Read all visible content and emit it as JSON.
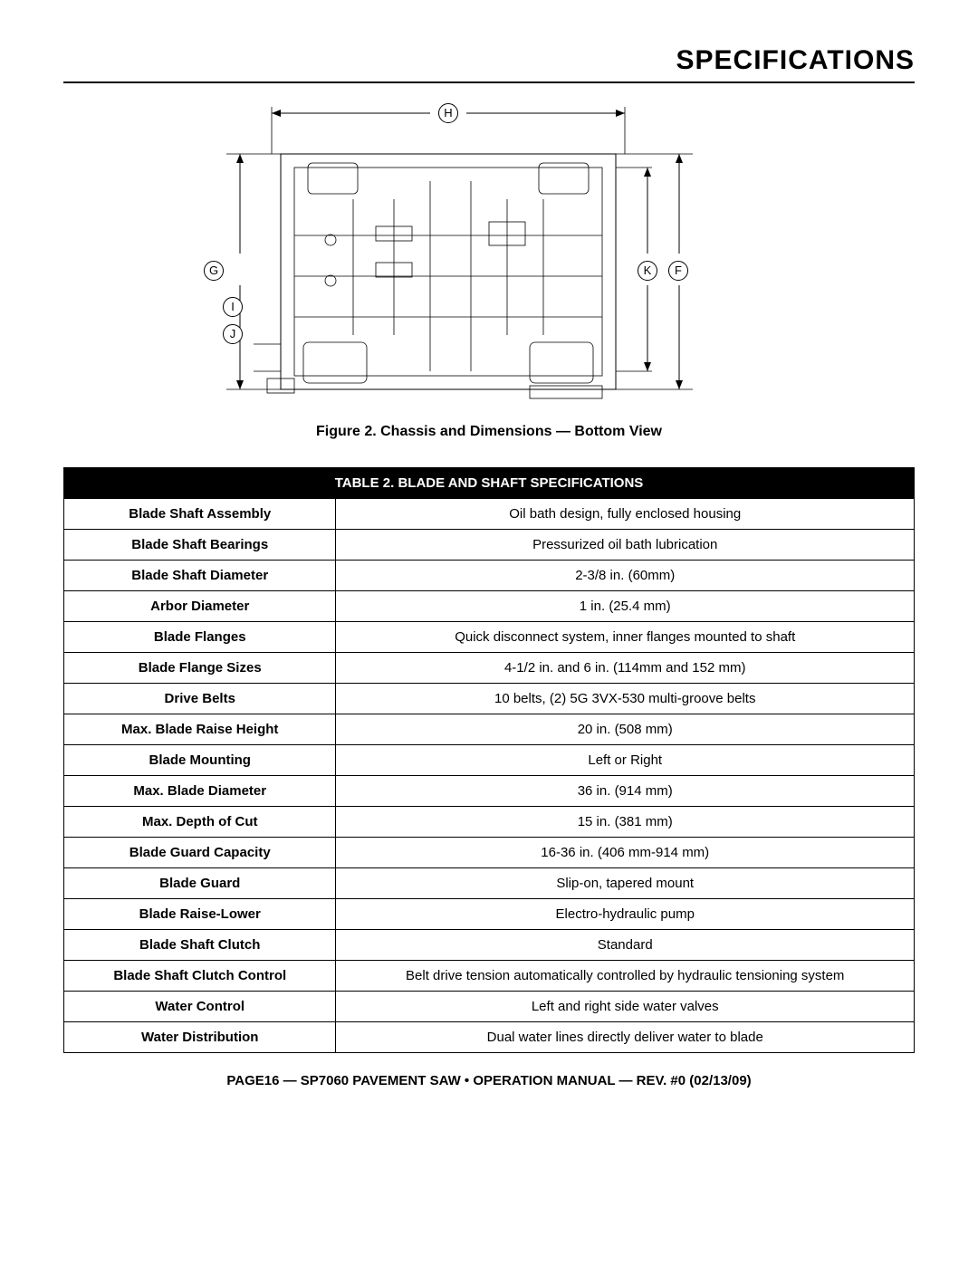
{
  "page": {
    "title": "SPECIFICATIONS",
    "figure_caption": "Figure 2. Chassis and Dimensions — Bottom View",
    "table_title": "TABLE 2.  BLADE AND SHAFT SPECIFICATIONS",
    "footer": "PAGE16 — SP7060 PAVEMENT SAW • OPERATION MANUAL — REV. #0 (02/13/09)"
  },
  "diagram": {
    "labels": {
      "H": "H",
      "G": "G",
      "I": "I",
      "J": "J",
      "K": "K",
      "F": "F"
    },
    "line_color": "#000000",
    "label_border": "#000000",
    "background": "#ffffff"
  },
  "table": {
    "header_bg": "#000000",
    "header_fg": "#ffffff",
    "border_color": "#000000",
    "rows": [
      {
        "label": "Blade Shaft Assembly",
        "value": "Oil bath design, fully enclosed housing"
      },
      {
        "label": "Blade Shaft Bearings",
        "value": "Pressurized oil bath lubrication"
      },
      {
        "label": "Blade Shaft Diameter",
        "value": "2-3/8 in. (60mm)"
      },
      {
        "label": "Arbor Diameter",
        "value": "1 in. (25.4 mm)"
      },
      {
        "label": "Blade Flanges",
        "value": "Quick disconnect system, inner flanges mounted to shaft"
      },
      {
        "label": "Blade Flange Sizes",
        "value": "4-1/2 in. and 6 in. (114mm and 152 mm)"
      },
      {
        "label": "Drive Belts",
        "value": "10 belts, (2) 5G 3VX-530 multi-groove belts"
      },
      {
        "label": "Max. Blade Raise Height",
        "value": "20 in. (508 mm)"
      },
      {
        "label": "Blade Mounting",
        "value": "Left or Right"
      },
      {
        "label": "Max. Blade Diameter",
        "value": "36 in. (914 mm)"
      },
      {
        "label": "Max. Depth of Cut",
        "value": "15 in. (381 mm)"
      },
      {
        "label": "Blade Guard Capacity",
        "value": "16-36 in. (406 mm-914 mm)"
      },
      {
        "label": "Blade Guard",
        "value": "Slip-on, tapered mount"
      },
      {
        "label": "Blade Raise-Lower",
        "value": "Electro-hydraulic pump"
      },
      {
        "label": "Blade Shaft Clutch",
        "value": "Standard"
      },
      {
        "label": "Blade Shaft Clutch Control",
        "value": "Belt drive tension automatically controlled by hydraulic tensioning system"
      },
      {
        "label": "Water Control",
        "value": "Left and right side water valves"
      },
      {
        "label": "Water Distribution",
        "value": "Dual water lines directly deliver water to blade"
      }
    ]
  }
}
